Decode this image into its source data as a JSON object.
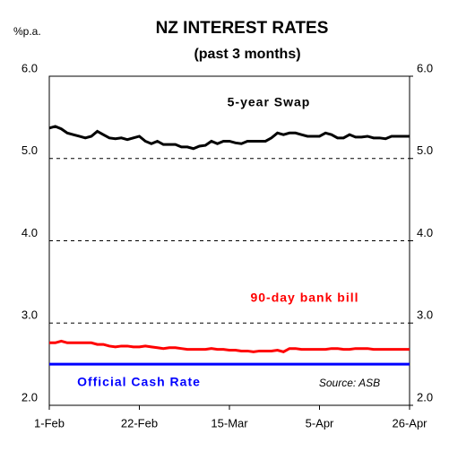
{
  "chart_data": {
    "type": "line",
    "title": "NZ INTEREST RATES",
    "subtitle": "(past 3 months)",
    "y_label": "%p.a.",
    "annotation": "Source: ASB",
    "categories": [
      "1-Feb",
      null,
      null,
      null,
      null,
      null,
      null,
      null,
      null,
      null,
      null,
      null,
      null,
      null,
      null,
      "22-Feb",
      null,
      null,
      null,
      null,
      null,
      null,
      null,
      null,
      null,
      null,
      null,
      null,
      null,
      null,
      "15-Mar",
      null,
      null,
      null,
      null,
      null,
      null,
      null,
      null,
      null,
      null,
      null,
      null,
      null,
      null,
      "5-Apr",
      null,
      null,
      null,
      null,
      null,
      null,
      null,
      null,
      null,
      null,
      null,
      null,
      null,
      null,
      "26-Apr"
    ],
    "series": [
      {
        "name": "5-year Swap",
        "color": "#000000",
        "values": [
          5.37,
          5.39,
          5.36,
          5.31,
          5.29,
          5.27,
          5.25,
          5.27,
          5.33,
          5.29,
          5.25,
          5.24,
          5.25,
          5.23,
          5.25,
          5.27,
          5.21,
          5.18,
          5.21,
          5.17,
          5.17,
          5.17,
          5.14,
          5.14,
          5.12,
          5.15,
          5.16,
          5.21,
          5.18,
          5.21,
          5.21,
          5.19,
          5.18,
          5.21,
          5.21,
          5.21,
          5.21,
          5.25,
          5.31,
          5.29,
          5.31,
          5.31,
          5.29,
          5.27,
          5.27,
          5.27,
          5.31,
          5.29,
          5.25,
          5.25,
          5.29,
          5.26,
          5.26,
          5.27,
          5.25,
          5.25,
          5.24,
          5.27,
          5.27,
          5.27,
          5.27
        ]
      },
      {
        "name": "90-day bank bill",
        "color": "#ff0000",
        "values": [
          2.76,
          2.76,
          2.78,
          2.76,
          2.76,
          2.76,
          2.76,
          2.76,
          2.74,
          2.74,
          2.72,
          2.71,
          2.72,
          2.72,
          2.71,
          2.71,
          2.72,
          2.71,
          2.7,
          2.69,
          2.7,
          2.7,
          2.69,
          2.68,
          2.68,
          2.68,
          2.68,
          2.69,
          2.68,
          2.68,
          2.67,
          2.67,
          2.66,
          2.66,
          2.65,
          2.66,
          2.66,
          2.66,
          2.67,
          2.65,
          2.69,
          2.69,
          2.68,
          2.68,
          2.68,
          2.68,
          2.68,
          2.69,
          2.69,
          2.68,
          2.68,
          2.69,
          2.69,
          2.69,
          2.68,
          2.68,
          2.68,
          2.68,
          2.68,
          2.68,
          2.68
        ]
      },
      {
        "name": "Official Cash Rate",
        "color": "#0000ff",
        "values": [
          2.5,
          2.5,
          2.5,
          2.5,
          2.5,
          2.5,
          2.5,
          2.5,
          2.5,
          2.5,
          2.5,
          2.5,
          2.5,
          2.5,
          2.5,
          2.5,
          2.5,
          2.5,
          2.5,
          2.5,
          2.5,
          2.5,
          2.5,
          2.5,
          2.5,
          2.5,
          2.5,
          2.5,
          2.5,
          2.5,
          2.5,
          2.5,
          2.5,
          2.5,
          2.5,
          2.5,
          2.5,
          2.5,
          2.5,
          2.5,
          2.5,
          2.5,
          2.5,
          2.5,
          2.5,
          2.5,
          2.5,
          2.5,
          2.5,
          2.5,
          2.5,
          2.5,
          2.5,
          2.5,
          2.5,
          2.5,
          2.5,
          2.5,
          2.5,
          2.5,
          2.5
        ]
      }
    ],
    "ylim": [
      2,
      6
    ],
    "yticks": [
      {
        "value": 2,
        "label": "2.0"
      },
      {
        "value": 3,
        "label": "3.0"
      },
      {
        "value": 4,
        "label": "4.0"
      },
      {
        "value": 5,
        "label": "5.0"
      },
      {
        "value": 6,
        "label": "6.0"
      }
    ],
    "y2lim": [
      2,
      6
    ],
    "y2ticks": [
      {
        "value": 2,
        "label": "2.0"
      },
      {
        "value": 3,
        "label": "3.0"
      },
      {
        "value": 4,
        "label": "4.0"
      },
      {
        "value": 5,
        "label": "5.0"
      },
      {
        "value": 6,
        "label": "6.0"
      }
    ],
    "grid": true
  }
}
